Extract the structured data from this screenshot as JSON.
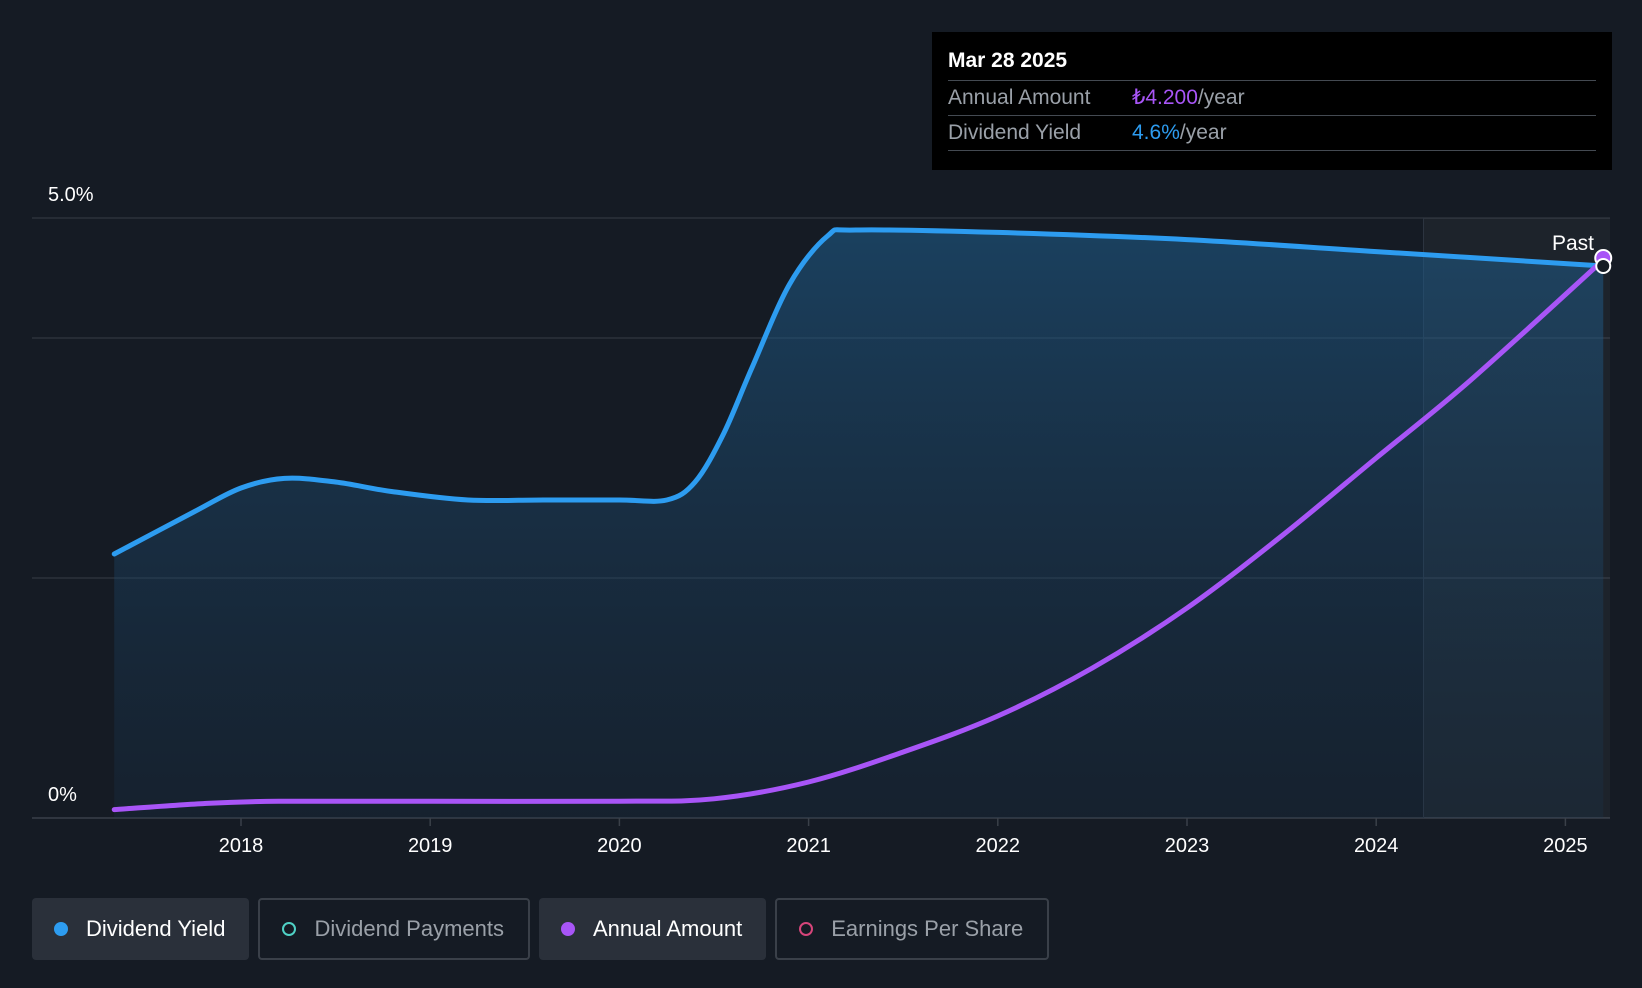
{
  "tooltip": {
    "date": "Mar 28 2025",
    "rows": [
      {
        "label": "Annual Amount",
        "value": "₺4.200",
        "unit": "/year"
      },
      {
        "label": "Dividend Yield",
        "value": "4.6%",
        "unit": "/year"
      }
    ]
  },
  "legend": [
    {
      "label": "Dividend Yield",
      "color": "#2d9cf0",
      "active": true
    },
    {
      "label": "Dividend Payments",
      "color": "#4fd1c5",
      "active": false
    },
    {
      "label": "Annual Amount",
      "color": "#a855f7",
      "active": true
    },
    {
      "label": "Earnings Per Share",
      "color": "#d6457a",
      "active": false
    }
  ],
  "chart_data": {
    "type": "line",
    "y_tick_labels": [
      "5.0%",
      "0%"
    ],
    "ylim": [
      0,
      5.0
    ],
    "xlim": [
      2017.0,
      2025.23
    ],
    "x_ticks": [
      2018,
      2019,
      2020,
      2021,
      2022,
      2023,
      2024,
      2025
    ],
    "grid": true,
    "past_label": "Past",
    "past_start": 2024.25,
    "series": [
      {
        "name": "Dividend Yield",
        "color": "#2d9cf0",
        "area": true,
        "points": [
          [
            2017.33,
            2.2
          ],
          [
            2017.75,
            2.55
          ],
          [
            2018.0,
            2.75
          ],
          [
            2018.23,
            2.83
          ],
          [
            2018.5,
            2.8
          ],
          [
            2018.8,
            2.72
          ],
          [
            2019.2,
            2.65
          ],
          [
            2019.6,
            2.65
          ],
          [
            2020.0,
            2.65
          ],
          [
            2020.25,
            2.65
          ],
          [
            2020.4,
            2.8
          ],
          [
            2020.55,
            3.2
          ],
          [
            2020.7,
            3.75
          ],
          [
            2020.9,
            4.45
          ],
          [
            2021.1,
            4.85
          ],
          [
            2021.25,
            4.9
          ],
          [
            2022.0,
            4.88
          ],
          [
            2023.0,
            4.82
          ],
          [
            2024.0,
            4.72
          ],
          [
            2025.2,
            4.6
          ]
        ]
      },
      {
        "name": "Annual Amount",
        "color": "#a855f7",
        "area": false,
        "points": [
          [
            2017.33,
            0.07
          ],
          [
            2017.8,
            0.12
          ],
          [
            2018.2,
            0.14
          ],
          [
            2019.0,
            0.14
          ],
          [
            2020.0,
            0.14
          ],
          [
            2020.5,
            0.16
          ],
          [
            2021.0,
            0.3
          ],
          [
            2021.5,
            0.55
          ],
          [
            2022.0,
            0.85
          ],
          [
            2022.5,
            1.25
          ],
          [
            2023.0,
            1.75
          ],
          [
            2023.5,
            2.35
          ],
          [
            2024.0,
            3.0
          ],
          [
            2024.5,
            3.65
          ],
          [
            2025.2,
            4.65
          ]
        ]
      }
    ]
  }
}
